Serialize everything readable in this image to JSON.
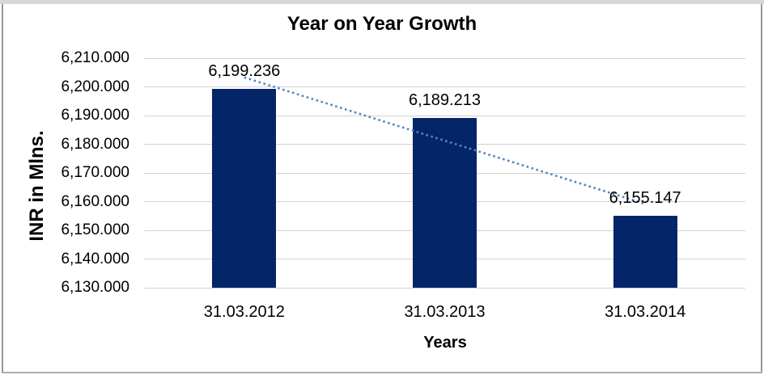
{
  "frame": {
    "background": "#ffffff",
    "top_strip_color": "#d6d6d6",
    "side_border_color": "#979797",
    "bottom_border_color": "#ababab"
  },
  "chart_data": {
    "type": "bar",
    "title": "Year on Year Growth",
    "xlabel": "Years",
    "ylabel": "INR in Mlns.",
    "categories": [
      "31.03.2012",
      "31.03.2013",
      "31.03.2014"
    ],
    "values": [
      6199.236,
      6189.213,
      6155.147
    ],
    "value_labels": [
      "6,199.236",
      "6,189.213",
      "6,155.147"
    ],
    "ylim": [
      6130,
      6210
    ],
    "ytick_step": 10,
    "ytick_labels": [
      "6,210.000",
      "6,200.000",
      "6,190.000",
      "6,180.000",
      "6,170.000",
      "6,160.000",
      "6,150.000",
      "6,140.000",
      "6,130.000"
    ],
    "grid": "horizontal-major",
    "legend": "none",
    "bar_color": "#052569",
    "gridline_color": "#d2d2d2",
    "text_color": "#000000",
    "trendline": {
      "type": "linear",
      "style": "dotted",
      "color": "#4f87c8",
      "start_value": 6203.3,
      "end_value": 6159.2
    }
  }
}
